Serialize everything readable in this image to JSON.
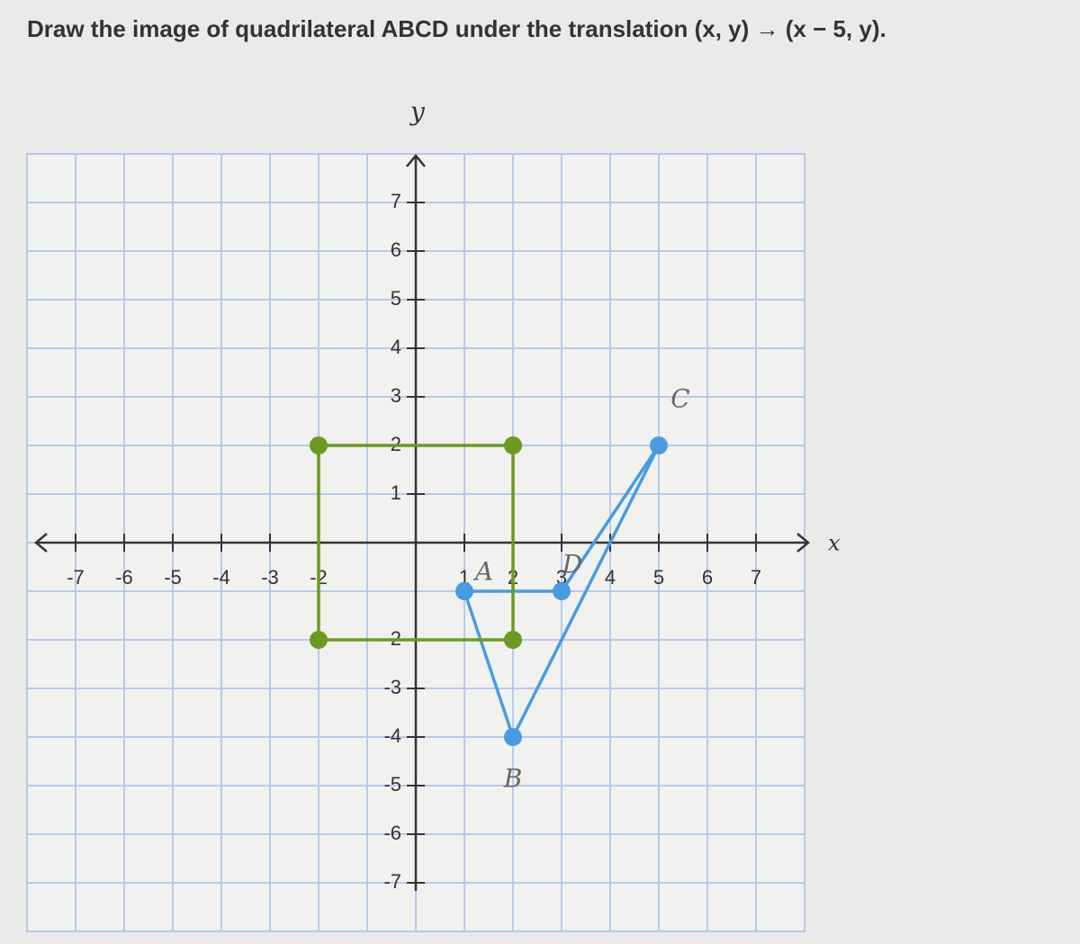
{
  "chart_data": {
    "type": "polygon",
    "title": "Draw the image of quadrilateral ABCD under the translation (x, y) → (x − 5, y).",
    "x_label": "x",
    "y_label": "y",
    "xlim": [
      -8,
      8
    ],
    "ylim": [
      -8,
      8
    ],
    "xticks": [
      -7,
      -6,
      -5,
      -4,
      -3,
      -2,
      1,
      2,
      3,
      4,
      5,
      6,
      7
    ],
    "yticks": [
      -7,
      -6,
      -5,
      -4,
      -3,
      -2,
      1,
      2,
      3,
      4,
      5,
      6,
      7
    ],
    "grid": true,
    "shapes": [
      {
        "color": "#4a9be0",
        "x": [
          1,
          2,
          5,
          3
        ],
        "y": [
          -1,
          -4,
          2,
          -1
        ],
        "labels": [
          "A",
          "B",
          "C",
          "D"
        ]
      },
      {
        "color": "#6a9a22",
        "x": [
          -2,
          2,
          2,
          -2
        ],
        "y": [
          2,
          2,
          -2,
          -2
        ]
      }
    ]
  }
}
